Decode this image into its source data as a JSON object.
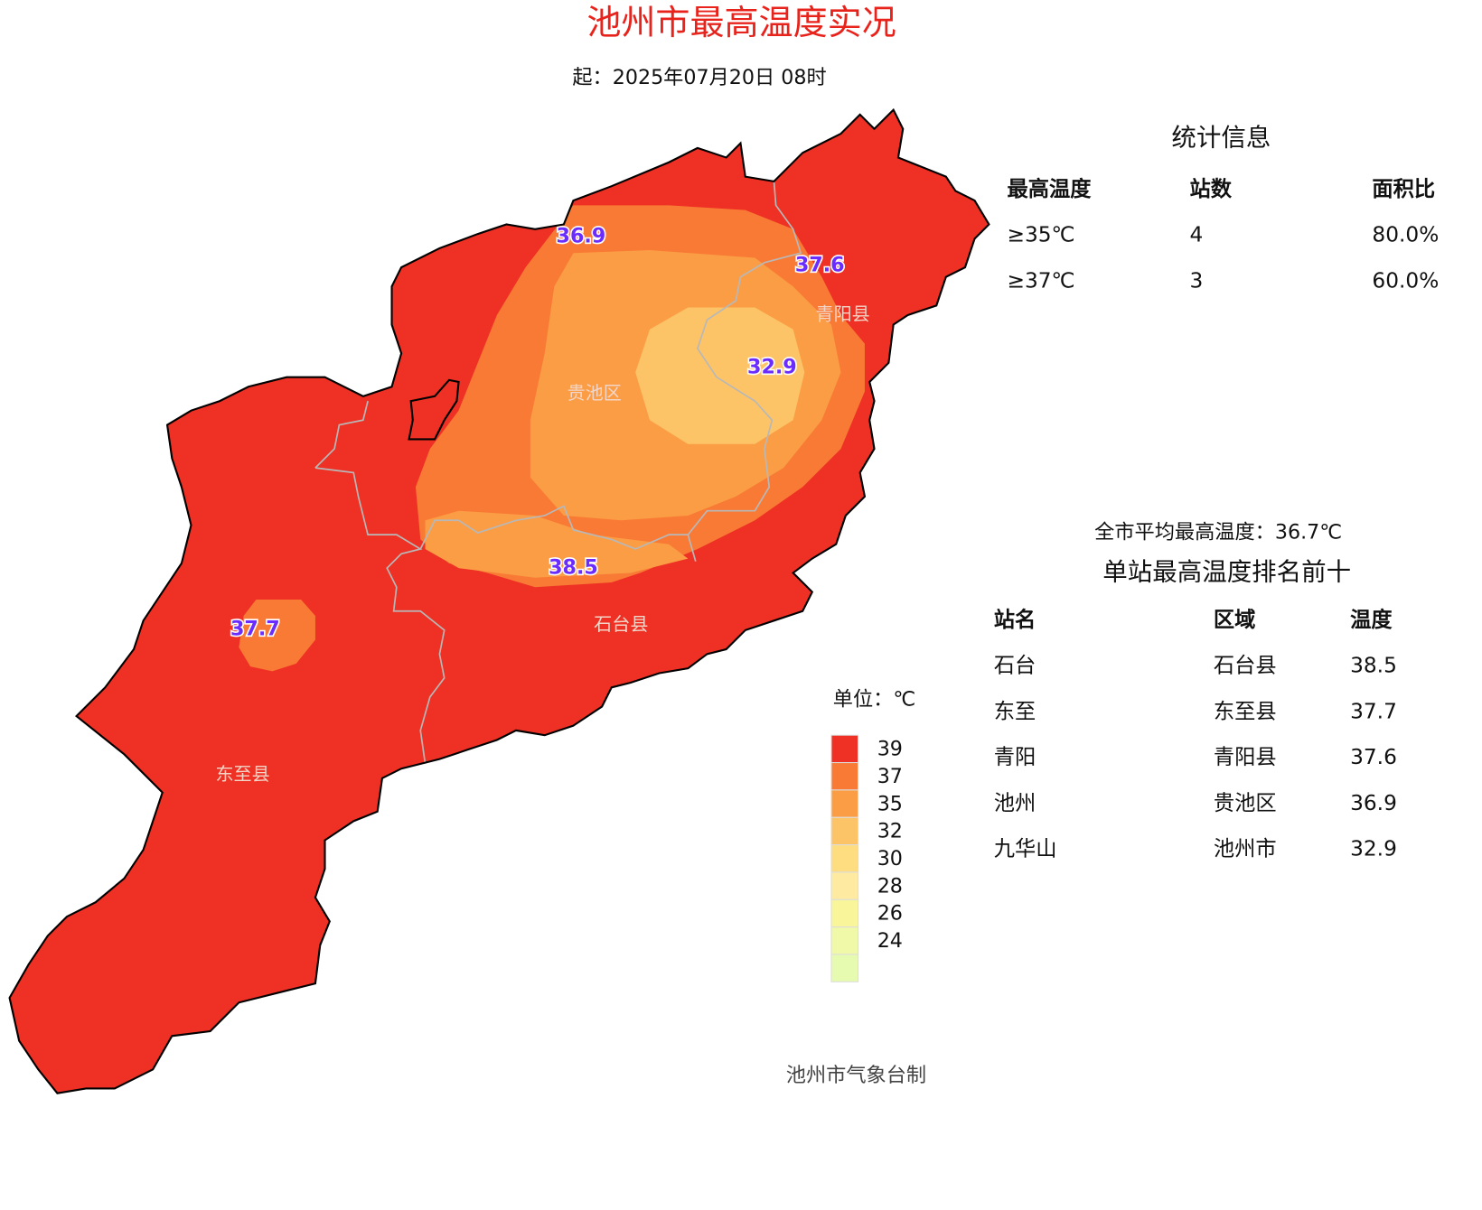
{
  "title": "池州市最高温度实况",
  "subtitle": "起：2025年07月20日 08时",
  "map": {
    "districts": [
      "青阳县",
      "贵池区",
      "石台县",
      "东至县"
    ],
    "stations": [
      "36.9",
      "37.6",
      "32.9",
      "38.5",
      "37.7"
    ]
  },
  "legend": {
    "unit": "单位：℃",
    "labels": [
      "39",
      "37",
      "35",
      "32",
      "30",
      "28",
      "26",
      "24"
    ],
    "colors": [
      "#ee3124",
      "#f97a35",
      "#fb9d45",
      "#fdc467",
      "#fedd80",
      "#feeaa0",
      "#f8f59a",
      "#f0f9a8",
      "#e6fbb0"
    ]
  },
  "stats": {
    "title": "统计信息",
    "headers": [
      "最高温度",
      "站数",
      "面积比"
    ],
    "rows": [
      [
        "≥35℃",
        "4",
        "80.0%"
      ],
      [
        "≥37℃",
        "3",
        "60.0%"
      ]
    ]
  },
  "average": "全市平均最高温度：36.7℃",
  "ranking": {
    "title": "单站最高温度排名前十",
    "headers": [
      "站名",
      "区域",
      "温度"
    ],
    "rows": [
      [
        "石台",
        "石台县",
        "38.5"
      ],
      [
        "东至",
        "东至县",
        "37.7"
      ],
      [
        "青阳",
        "青阳县",
        "37.6"
      ],
      [
        "池州",
        "贵池区",
        "36.9"
      ],
      [
        "九华山",
        "池州市",
        "32.9"
      ]
    ]
  },
  "footer": "池州市气象台制"
}
